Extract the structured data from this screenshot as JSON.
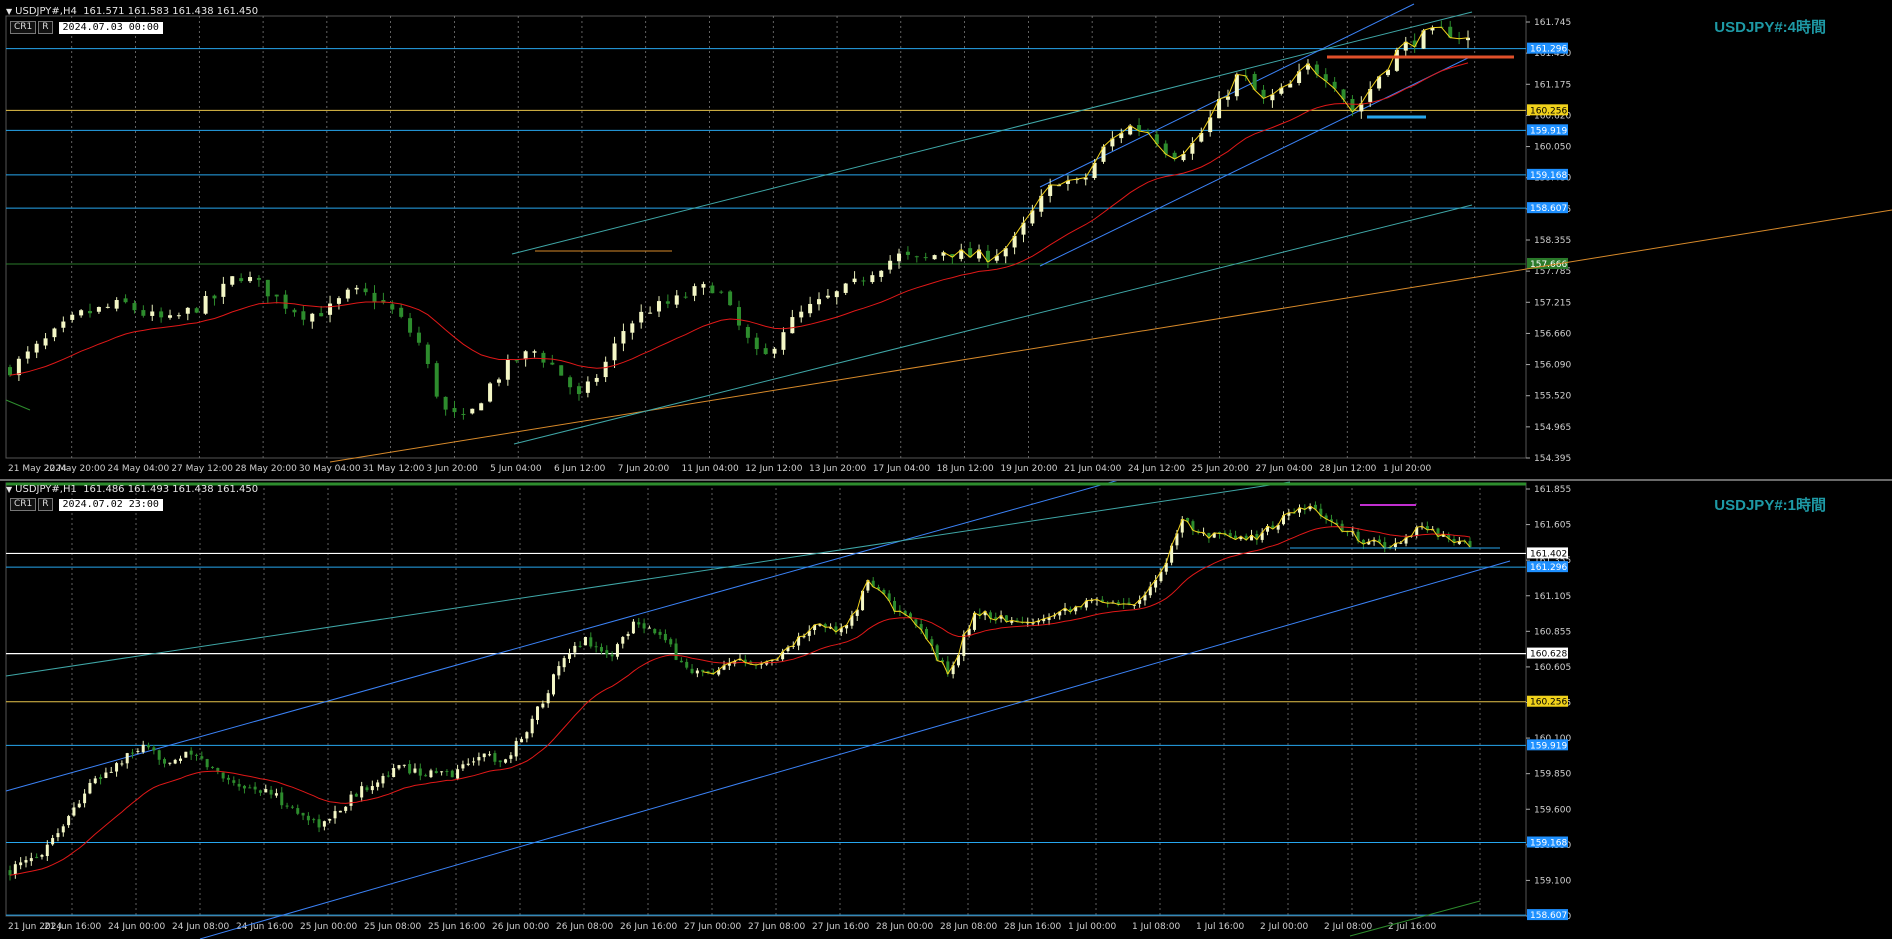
{
  "colors": {
    "bg": "#000000",
    "bull": "#f4f7c6",
    "bear": "#2d8c2d",
    "ma": "#e01818",
    "zigzag": "#f1d21b",
    "level": "#27a6ee",
    "orange": "#d88a2a"
  },
  "panes": [
    {
      "id": "h4",
      "header": "USDJPY#,H4  161.571 161.583 161.438 161.450",
      "buttons": [
        "CR1",
        "R"
      ],
      "time": "2024.07.03 00:00",
      "title": "USDJPY#:4時間",
      "price_labels": [
        "161.745",
        "161.450",
        "161.175",
        "160.620",
        "160.050",
        "159.480",
        "158.925",
        "158.355",
        "157.785",
        "157.215",
        "156.660",
        "156.090",
        "155.520",
        "154.965",
        "154.395"
      ],
      "levels": [
        {
          "label": "161.296",
          "price": 161.296,
          "color": "#27a6ee",
          "bg": "#1e90ff"
        },
        {
          "label": "160.256",
          "price": 160.256,
          "color": "#e6c34a",
          "bg": "#f1d21b"
        },
        {
          "label": "159.919",
          "price": 159.919,
          "color": "#27a6ee",
          "bg": "#1e90ff"
        },
        {
          "label": "159.168",
          "price": 159.168,
          "color": "#27a6ee",
          "bg": "#1e90ff"
        },
        {
          "label": "158.607",
          "price": 158.607,
          "color": "#27a6ee",
          "bg": "#1e90ff"
        },
        {
          "label": "157.666",
          "price": 157.666,
          "color": "#2a7a2a",
          "bg": "#2a7a2a"
        }
      ],
      "time_labels": [
        "21 May 2024",
        "22 May 20:00",
        "24 May 04:00",
        "27 May 12:00",
        "28 May 20:00",
        "30 May 04:00",
        "31 May 12:00",
        "3 Jun 20:00",
        "5 Jun 04:00",
        "6 Jun 12:00",
        "7 Jun 20:00",
        "11 Jun 04:00",
        "12 Jun 12:00",
        "13 Jun 20:00",
        "17 Jun 04:00",
        "18 Jun 12:00",
        "19 Jun 20:00",
        "21 Jun 04:00",
        "24 Jun 12:00",
        "25 Jun 20:00",
        "27 Jun 04:00",
        "28 Jun 12:00",
        "1 Jul 20:00"
      ]
    },
    {
      "id": "h1",
      "header": "USDJPY#,H1  161.486 161.493 161.438 161.450",
      "buttons": [
        "CR1",
        "R"
      ],
      "time": "2024.07.02 23:00",
      "title": "USDJPY#:1時間",
      "price_labels": [
        "161.855",
        "161.605",
        "161.355",
        "161.105",
        "160.855",
        "160.605",
        "160.355",
        "160.100",
        "159.850",
        "159.600",
        "159.350",
        "159.100",
        "158.850"
      ],
      "levels": [
        {
          "label": "161.402",
          "price": 161.402,
          "color": "#ffffff",
          "bg": "#ffffff"
        },
        {
          "label": "161.296",
          "price": 161.296,
          "color": "#27a6ee",
          "bg": "#1e90ff"
        },
        {
          "label": "160.628",
          "price": 160.628,
          "color": "#ffffff",
          "bg": "#ffffff"
        },
        {
          "label": "160.256",
          "price": 160.256,
          "color": "#e6c34a",
          "bg": "#f1d21b"
        },
        {
          "label": "159.919",
          "price": 159.919,
          "color": "#27a6ee",
          "bg": "#1e90ff"
        },
        {
          "label": "159.168",
          "price": 159.168,
          "color": "#27a6ee",
          "bg": "#1e90ff"
        },
        {
          "label": "158.607",
          "price": 158.607,
          "color": "#27a6ee",
          "bg": "#1e90ff"
        }
      ],
      "time_labels": [
        "21 Jun 2024",
        "21 Jun 16:00",
        "24 Jun 00:00",
        "24 Jun 08:00",
        "24 Jun 16:00",
        "25 Jun 00:00",
        "25 Jun 08:00",
        "25 Jun 16:00",
        "26 Jun 00:00",
        "26 Jun 08:00",
        "26 Jun 16:00",
        "27 Jun 00:00",
        "27 Jun 08:00",
        "27 Jun 16:00",
        "28 Jun 00:00",
        "28 Jun 08:00",
        "28 Jun 16:00",
        "1 Jul 00:00",
        "1 Jul 08:00",
        "1 Jul 16:00",
        "2 Jul 00:00",
        "2 Jul 08:00",
        "2 Jul 16:00"
      ]
    }
  ],
  "chart_data": [
    {
      "type": "candlestick",
      "title": "USDJPY#:4時間",
      "ylim": [
        154.395,
        161.745
      ],
      "close_path": [
        155.9,
        156.2,
        156.5,
        156.8,
        156.9,
        157.0,
        156.8,
        156.7,
        156.9,
        157.1,
        157.5,
        157.3,
        157.0,
        156.8,
        156.9,
        157.2,
        157.1,
        156.8,
        156.3,
        155.2,
        155.0,
        155.6,
        156.0,
        156.2,
        155.9,
        155.4,
        155.9,
        156.6,
        156.9,
        157.0,
        157.2,
        157.3,
        156.6,
        156.0,
        156.6,
        156.9,
        157.1,
        157.3,
        157.6,
        157.8,
        157.7,
        157.9,
        157.8,
        157.8,
        158.0,
        158.6,
        159.1,
        159.0,
        159.6,
        160.0,
        159.9,
        159.5,
        159.7,
        160.3,
        160.9,
        160.4,
        160.6,
        161.0,
        160.8,
        160.2,
        160.8,
        161.3,
        161.5,
        161.6,
        161.45
      ],
      "ma_path": [
        155.7,
        155.9,
        156.1,
        156.4,
        156.6,
        156.7,
        156.8,
        156.8,
        156.8,
        156.9,
        157.0,
        157.1,
        157.1,
        157.0,
        157.0,
        156.9,
        156.7,
        156.4,
        156.1,
        155.9,
        155.7,
        155.6,
        155.6,
        155.7,
        155.7,
        155.7,
        155.8,
        155.9,
        156.1,
        156.3,
        156.5,
        156.7,
        156.8,
        156.8,
        156.8,
        156.9,
        157.0,
        157.2,
        157.4,
        157.6,
        157.7,
        157.8,
        157.9,
        158.0,
        158.2,
        158.4,
        158.7,
        159.0,
        159.3,
        159.5,
        159.6,
        159.7,
        159.8,
        160.0,
        160.2,
        160.4,
        160.6,
        160.7,
        160.7,
        160.8,
        160.9,
        161.1,
        161.2,
        161.3,
        161.35
      ]
    },
    {
      "type": "candlestick",
      "title": "USDJPY#:1時間",
      "ylim": [
        158.6,
        161.9
      ],
      "close_path": [
        158.95,
        159.05,
        159.3,
        159.6,
        159.75,
        159.9,
        159.8,
        159.85,
        159.7,
        159.6,
        159.55,
        159.4,
        159.3,
        159.5,
        159.65,
        159.75,
        159.7,
        159.7,
        159.85,
        159.8,
        160.1,
        160.5,
        160.75,
        160.6,
        160.9,
        160.75,
        160.5,
        160.45,
        160.6,
        160.55,
        160.7,
        160.85,
        160.8,
        161.2,
        160.95,
        160.8,
        160.45,
        160.95,
        160.9,
        160.85,
        160.95,
        161.0,
        161.05,
        161.0,
        161.2,
        161.65,
        161.55,
        161.5,
        161.55,
        161.7,
        161.75,
        161.6,
        161.5,
        161.45,
        161.6,
        161.55,
        161.45
      ]
    }
  ]
}
